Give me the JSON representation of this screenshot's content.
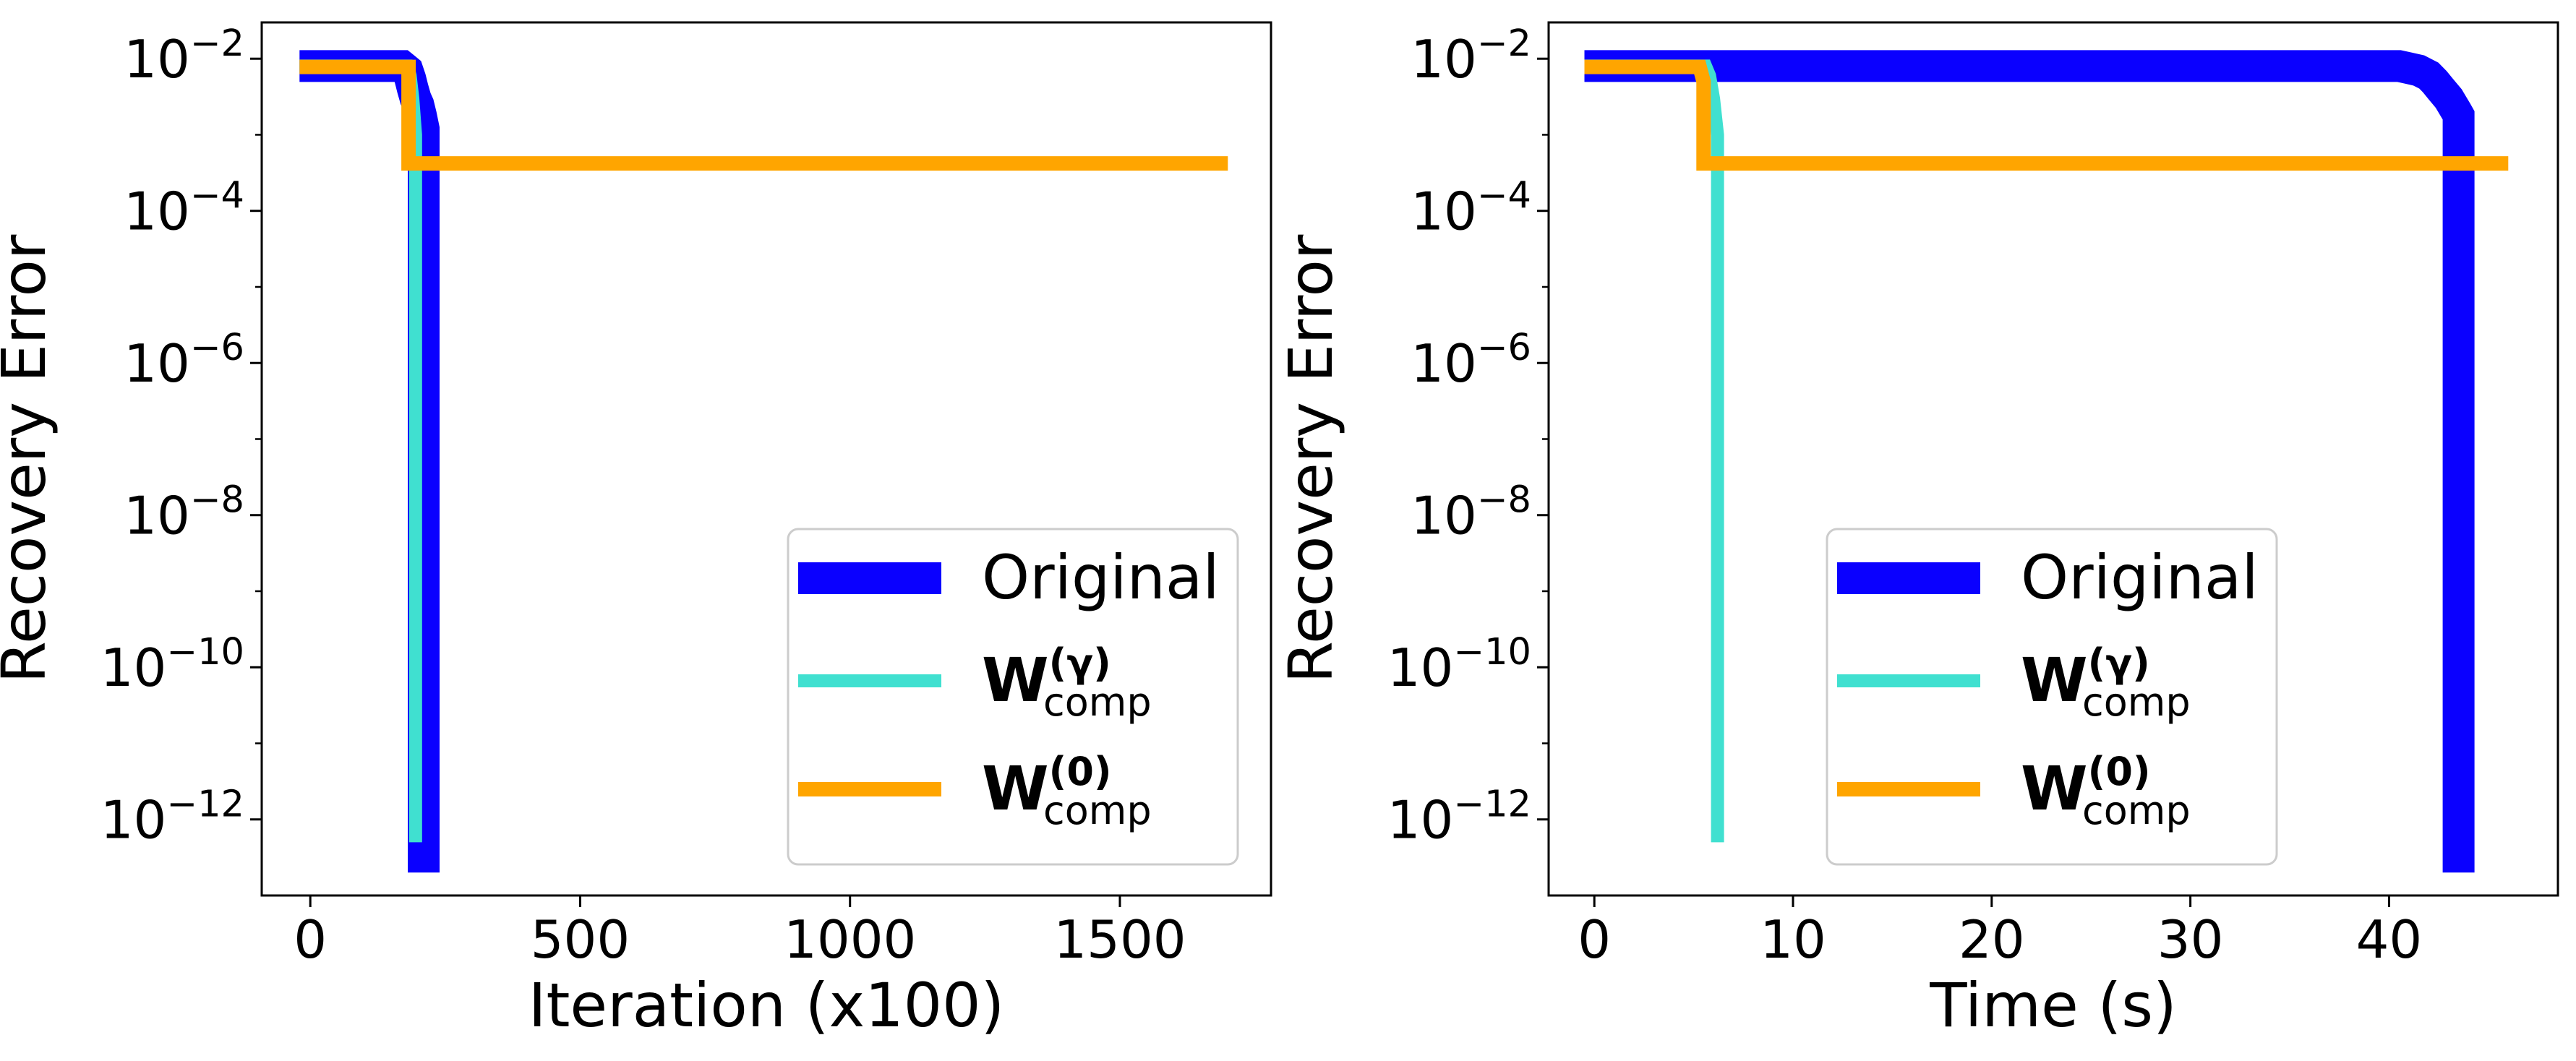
{
  "chart_data": [
    {
      "type": "line",
      "xlabel": "Iteration (x100)",
      "ylabel": "Recovery Error",
      "yscale": "log",
      "xlim": [
        -90,
        1780
      ],
      "ylim": [
        1e-13,
        0.03
      ],
      "xticks": [
        0,
        500,
        1000,
        1500
      ],
      "yticks": [
        {
          "base": "10",
          "exp": "−2",
          "value": 0.01
        },
        {
          "base": "10",
          "exp": "−4",
          "value": 0.0001
        },
        {
          "base": "10",
          "exp": "−6",
          "value": 1e-06
        },
        {
          "base": "10",
          "exp": "−8",
          "value": 1e-08
        },
        {
          "base": "10",
          "exp": "−10",
          "value": 1e-10
        },
        {
          "base": "10",
          "exp": "−12",
          "value": 1e-12
        }
      ],
      "grid": false,
      "legend_position": "lower-right",
      "series": [
        {
          "name": "Original",
          "color": "#0a00ff",
          "x": [
            -20,
            170,
            175,
            180,
            185,
            190,
            195,
            200,
            205,
            210,
            210
          ],
          "y": [
            0.008,
            0.008,
            0.0075,
            0.007,
            0.0055,
            0.004,
            0.003,
            0.0025,
            0.0018,
            0.0012,
            2e-13
          ]
        },
        {
          "name_main": "W",
          "name_sup": "(γ)",
          "name_sub": "comp",
          "color": "#40e0d0",
          "x": [
            -20,
            180,
            185,
            190,
            195,
            195
          ],
          "y": [
            0.008,
            0.008,
            0.006,
            0.003,
            0.001,
            5e-13
          ]
        },
        {
          "name_main": "W",
          "name_sup": "(0)",
          "name_sub": "comp",
          "color": "#ffa500",
          "x": [
            -20,
            175,
            182,
            182,
            1700
          ],
          "y": [
            0.0078,
            0.0078,
            0.0078,
            0.00042,
            0.00042
          ]
        }
      ]
    },
    {
      "type": "line",
      "xlabel": "Time (s)",
      "ylabel": "Recovery Error",
      "yscale": "log",
      "xlim": [
        -2.3,
        48.5
      ],
      "ylim": [
        1e-13,
        0.03
      ],
      "xticks": [
        0,
        10,
        20,
        30,
        40
      ],
      "yticks": [
        {
          "base": "10",
          "exp": "−2",
          "value": 0.01
        },
        {
          "base": "10",
          "exp": "−4",
          "value": 0.0001
        },
        {
          "base": "10",
          "exp": "−6",
          "value": 1e-06
        },
        {
          "base": "10",
          "exp": "−8",
          "value": 1e-08
        },
        {
          "base": "10",
          "exp": "−10",
          "value": 1e-10
        },
        {
          "base": "10",
          "exp": "−12",
          "value": 1e-12
        }
      ],
      "grid": false,
      "legend_position": "lower-center",
      "series": [
        {
          "name": "Original",
          "color": "#0a00ff",
          "x": [
            -0.5,
            40.5,
            41.0,
            41.5,
            42.0,
            42.3,
            42.6,
            43.0,
            43.4,
            43.5,
            43.5
          ],
          "y": [
            0.008,
            0.008,
            0.0075,
            0.007,
            0.006,
            0.005,
            0.004,
            0.003,
            0.002,
            0.0018,
            2e-13
          ]
        },
        {
          "name_main": "W",
          "name_sup": "(γ)",
          "name_sub": "comp",
          "color": "#40e0d0",
          "x": [
            -0.5,
            5.6,
            5.8,
            6.0,
            6.2,
            6.2
          ],
          "y": [
            0.008,
            0.008,
            0.006,
            0.003,
            0.001,
            5e-13
          ]
        },
        {
          "name_main": "W",
          "name_sup": "(0)",
          "name_sub": "comp",
          "color": "#ffa500",
          "x": [
            -0.5,
            5.0,
            5.3,
            5.5,
            5.5,
            46.0
          ],
          "y": [
            0.0078,
            0.0078,
            0.0078,
            0.005,
            0.00042,
            0.00042
          ]
        }
      ]
    }
  ]
}
